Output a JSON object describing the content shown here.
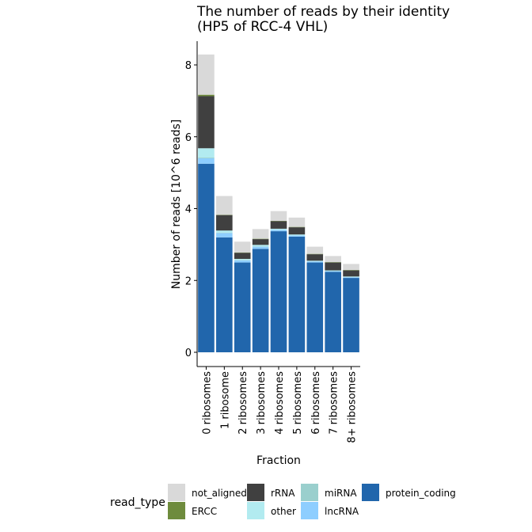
{
  "chart_data": {
    "type": "bar",
    "stacked": true,
    "title": [
      "The number of reads by their identity",
      "(HP5 of RCC-4 VHL)"
    ],
    "xlabel": "Fraction",
    "ylabel": "Number of reads [10^6 reads]",
    "ylim": [
      0,
      8.6
    ],
    "yticks": [
      0,
      2,
      4,
      6,
      8
    ],
    "grid": false,
    "legend_placement": "bottom",
    "categories": [
      "0 ribosomes",
      "1 ribosome",
      "2 ribosomes",
      "3 ribosomes",
      "4 ribosomes",
      "5 ribosomes",
      "6 ribosomes",
      "7 ribosomes",
      "8+ ribosomes"
    ],
    "series": [
      {
        "name": "protein_coding",
        "color": "#2166AC",
        "values": [
          5.25,
          3.2,
          2.5,
          2.88,
          3.37,
          3.22,
          2.5,
          2.24,
          2.07
        ]
      },
      {
        "name": "lncRNA",
        "color": "#8ECEFF",
        "values": [
          0.15,
          0.12,
          0.06,
          0.06,
          0.04,
          0.03,
          0.03,
          0.02,
          0.02
        ]
      },
      {
        "name": "miRNA",
        "color": "#9ACFCD",
        "values": [
          0.02,
          0.01,
          0.01,
          0.01,
          0.0,
          0.0,
          0.0,
          0.0,
          0.0
        ]
      },
      {
        "name": "other",
        "color": "#B2EBF0",
        "values": [
          0.26,
          0.06,
          0.03,
          0.04,
          0.03,
          0.03,
          0.02,
          0.02,
          0.02
        ]
      },
      {
        "name": "rRNA",
        "color": "#404040",
        "values": [
          1.45,
          0.43,
          0.17,
          0.16,
          0.21,
          0.2,
          0.18,
          0.22,
          0.17
        ]
      },
      {
        "name": "ERCC",
        "color": "#6E8B3D",
        "values": [
          0.04,
          0.01,
          0.01,
          0.01,
          0.01,
          0.01,
          0.01,
          0.01,
          0.01
        ]
      },
      {
        "name": "not_aligned",
        "color": "#D9D9D9",
        "values": [
          1.12,
          0.52,
          0.3,
          0.27,
          0.27,
          0.26,
          0.2,
          0.17,
          0.17
        ]
      }
    ],
    "legend": {
      "title": "read_type",
      "entries": [
        {
          "label": "not_aligned",
          "color": "#D9D9D9"
        },
        {
          "label": "ERCC",
          "color": "#6E8B3D"
        },
        {
          "label": "rRNA",
          "color": "#404040"
        },
        {
          "label": "other",
          "color": "#B2EBF0"
        },
        {
          "label": "miRNA",
          "color": "#9ACFCD"
        },
        {
          "label": "lncRNA",
          "color": "#8ECEFF"
        },
        {
          "label": "protein_coding",
          "color": "#2166AC"
        }
      ]
    }
  }
}
